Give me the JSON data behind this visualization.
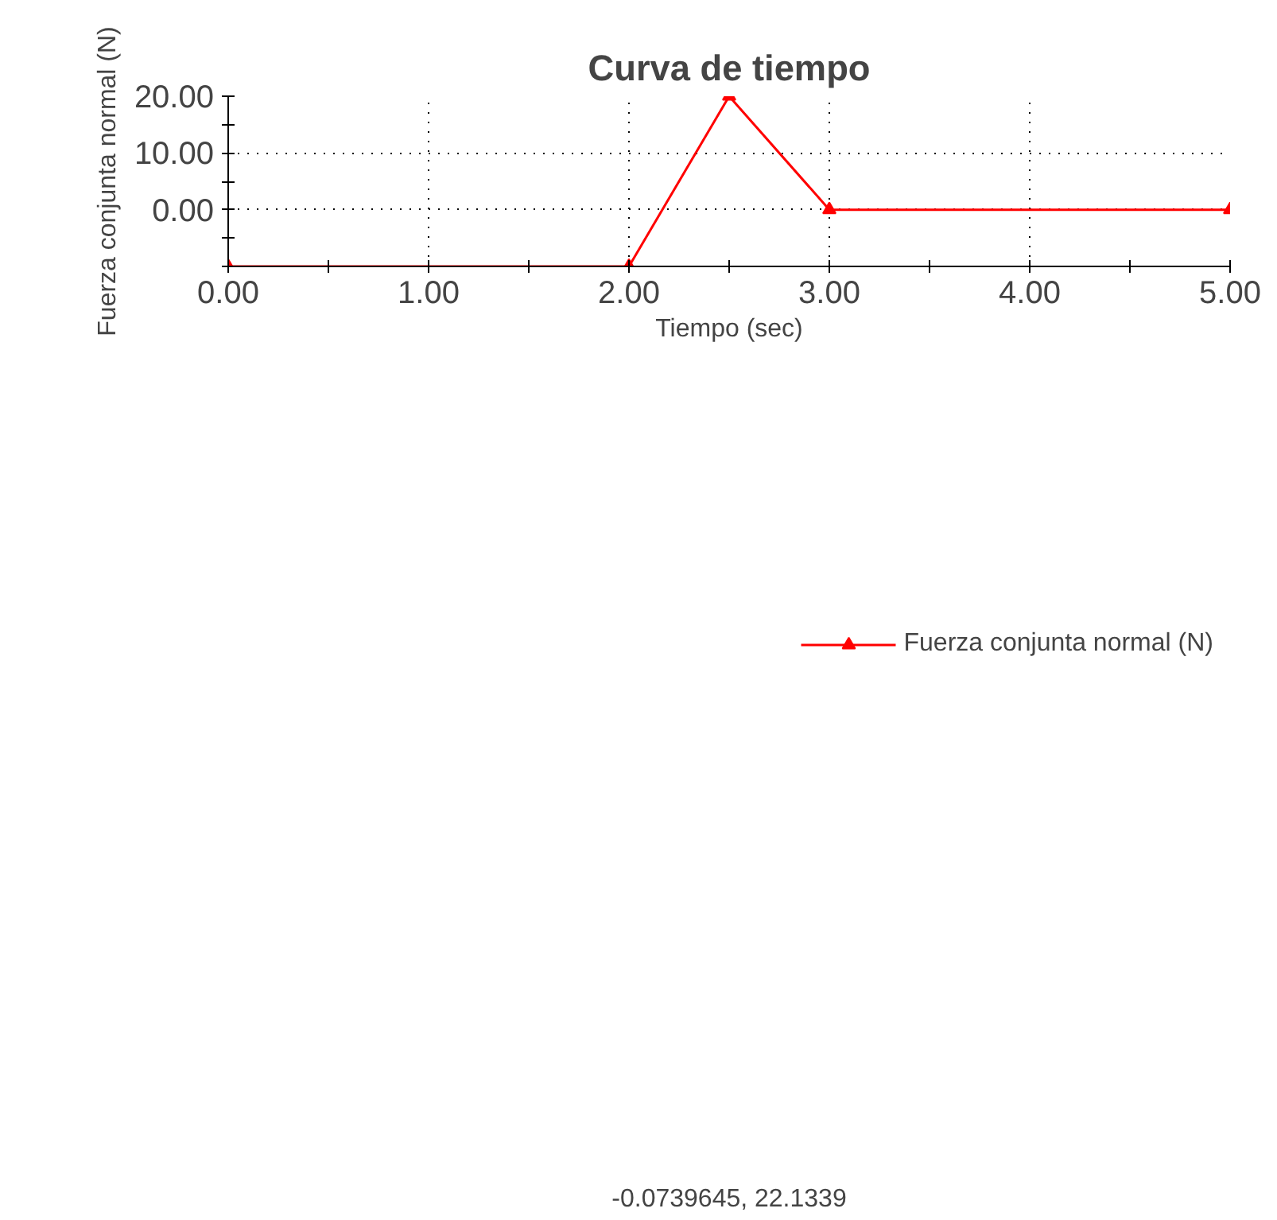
{
  "chart_data": {
    "type": "line",
    "title": "Curva de tiempo",
    "xlabel": "Tiempo (sec)",
    "ylabel": "Fuerza conjunta normal (N)",
    "x": [
      0,
      2,
      2.5,
      3,
      5
    ],
    "series": [
      {
        "name": "Fuerza conjunta normal (N)",
        "color": "#ff0000",
        "values": [
          -10,
          -10,
          20,
          0,
          0
        ]
      }
    ],
    "xlim": [
      0,
      5
    ],
    "ylim": [
      -10,
      20
    ],
    "xticks": [
      {
        "value": 0,
        "label": "0.00"
      },
      {
        "value": 0.5,
        "label": null
      },
      {
        "value": 1,
        "label": "1.00"
      },
      {
        "value": 1.5,
        "label": null
      },
      {
        "value": 2,
        "label": "2.00"
      },
      {
        "value": 2.5,
        "label": null
      },
      {
        "value": 3,
        "label": "3.00"
      },
      {
        "value": 3.5,
        "label": null
      },
      {
        "value": 4,
        "label": "4.00"
      },
      {
        "value": 4.5,
        "label": null
      },
      {
        "value": 5,
        "label": "5.00"
      }
    ],
    "yticks": [
      {
        "value": -10,
        "label": null
      },
      {
        "value": -5,
        "label": null
      },
      {
        "value": 0,
        "label": "0.00"
      },
      {
        "value": 5,
        "label": null
      },
      {
        "value": 10,
        "label": "10.00"
      },
      {
        "value": 15,
        "label": null
      },
      {
        "value": 20,
        "label": "20.00"
      }
    ],
    "grid": true,
    "legend": "bottom",
    "marker": "triangle",
    "line_style": "solid",
    "annotations": [
      "-0.0739645, 22.1339"
    ]
  }
}
